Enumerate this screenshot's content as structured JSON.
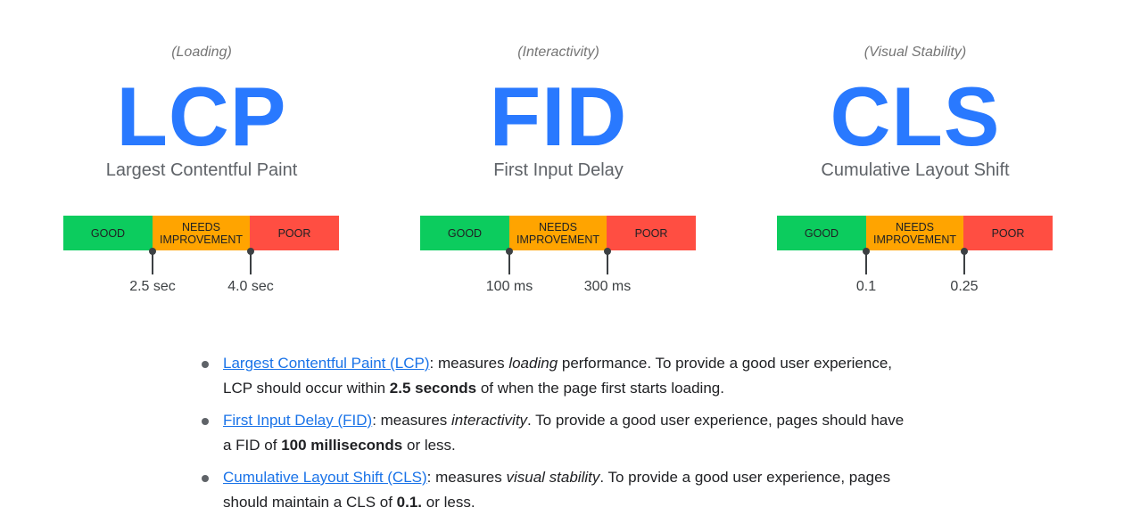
{
  "metrics": [
    {
      "category": "(Loading)",
      "abbr": "LCP",
      "name": "Largest Contentful Paint",
      "good": "GOOD",
      "needs": "NEEDS IMPROVEMENT",
      "poor": "POOR",
      "threshold_1": "2.5 sec",
      "threshold_2": "4.0 sec"
    },
    {
      "category": "(Interactivity)",
      "abbr": "FID",
      "name": "First Input Delay",
      "good": "GOOD",
      "needs": "NEEDS IMPROVEMENT",
      "poor": "POOR",
      "threshold_1": "100 ms",
      "threshold_2": "300 ms"
    },
    {
      "category": "(Visual Stability)",
      "abbr": "CLS",
      "name": "Cumulative Layout Shift",
      "good": "GOOD",
      "needs": "NEEDS IMPROVEMENT",
      "poor": "POOR",
      "threshold_1": "0.1",
      "threshold_2": "0.25"
    }
  ],
  "colors": {
    "good": "#0ccc5e",
    "needs_improvement": "#ffa400",
    "poor": "#ff4e42",
    "accent": "#2979ff",
    "link": "#1a73e8"
  },
  "bullets": [
    {
      "link": "Largest Contentful Paint (LCP)",
      "t1": ": measures ",
      "em": "loading",
      "t2": " performance. To provide a good user experience, LCP should occur within ",
      "strong": "2.5 seconds",
      "t3": " of when the page first starts loading."
    },
    {
      "link": "First Input Delay (FID)",
      "t1": ": measures ",
      "em": "interactivity",
      "t2": ". To provide a good user experience, pages should have a FID of ",
      "strong": "100 milliseconds",
      "t3": " or less."
    },
    {
      "link": "Cumulative Layout Shift (CLS)",
      "t1": ": measures ",
      "em": "visual stability",
      "t2": ". To provide a good user experience, pages should maintain a CLS of ",
      "strong": "0.1.",
      "t3": " or less."
    }
  ]
}
